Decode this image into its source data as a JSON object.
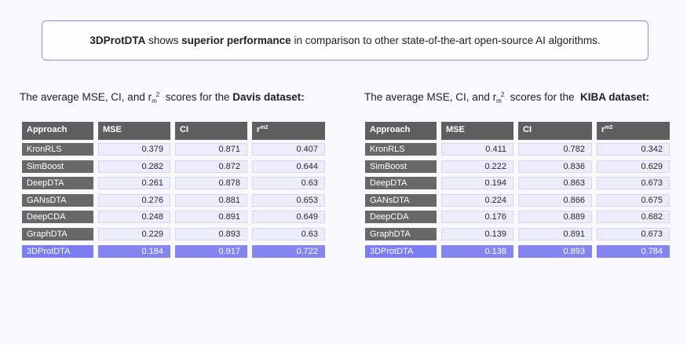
{
  "banner": {
    "part1": "3DProtDTA",
    "part2": " shows ",
    "part3": "superior performance",
    "part4": " in comparison to other state-of-the-art open-source AI algorithms."
  },
  "davis": {
    "caption_prefix": "The average MSE, CI, and r",
    "caption_sub": "m",
    "caption_sup": "2",
    "caption_mid": "  scores for the ",
    "caption_bold": "Davis dataset:",
    "headers": {
      "approach": "Approach",
      "mse": "MSE",
      "ci": "CI",
      "r": "r",
      "r_sub": "m",
      "r_sup": "2"
    },
    "rows": [
      {
        "approach": "KronRLS",
        "mse": "0.379",
        "ci": "0.871",
        "r": "0.407"
      },
      {
        "approach": "SimBoost",
        "mse": "0.282",
        "ci": "0.872",
        "r": "0.644"
      },
      {
        "approach": "DeepDTA",
        "mse": "0.261",
        "ci": "0.878",
        "r": "0.63"
      },
      {
        "approach": "GANsDTA",
        "mse": "0.276",
        "ci": "0.881",
        "r": "0.653"
      },
      {
        "approach": "DeepCDA",
        "mse": "0.248",
        "ci": "0.891",
        "r": "0.649"
      },
      {
        "approach": "GraphDTA",
        "mse": "0.229",
        "ci": "0.893",
        "r": "0.63"
      },
      {
        "approach": "3DProtDTA",
        "mse": "0.184",
        "ci": "0.917",
        "r": "0.722"
      }
    ]
  },
  "kiba": {
    "caption_prefix": "The average MSE, CI, and r",
    "caption_sub": "m",
    "caption_sup": "2",
    "caption_mid": "  scores for the  ",
    "caption_bold": "KIBA dataset:",
    "headers": {
      "approach": "Approach",
      "mse": "MSE",
      "ci": "CI",
      "r": "r",
      "r_sub": "m",
      "r_sup": "2"
    },
    "rows": [
      {
        "approach": "KronRLS",
        "mse": "0.411",
        "ci": "0.782",
        "r": "0.342"
      },
      {
        "approach": "SimBoost",
        "mse": "0.222",
        "ci": "0.836",
        "r": "0.629"
      },
      {
        "approach": "DeepDTA",
        "mse": "0.194",
        "ci": "0.863",
        "r": "0.673"
      },
      {
        "approach": "GANsDTA",
        "mse": "0.224",
        "ci": "0.866",
        "r": "0.675"
      },
      {
        "approach": "DeepCDA",
        "mse": "0.176",
        "ci": "0.889",
        "r": "0.682"
      },
      {
        "approach": "GraphDTA",
        "mse": "0.139",
        "ci": "0.891",
        "r": "0.673"
      },
      {
        "approach": "3DProtDTA",
        "mse": "0.138",
        "ci": "0.893",
        "r": "0.784"
      }
    ]
  },
  "colors": {
    "accent": "#7d7df2",
    "header_bg": "#5f5f5f",
    "cell_bg": "#ececfa",
    "banner_border": "#8f8ef0"
  }
}
